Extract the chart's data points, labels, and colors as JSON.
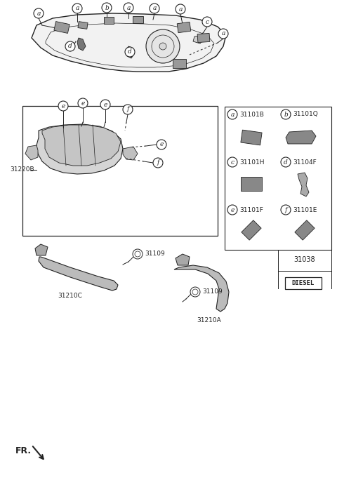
{
  "bg_color": "#ffffff",
  "line_color": "#222222",
  "gray_fill": "#aaaaaa",
  "light_gray": "#d8d8d8",
  "dark_gray": "#777777",
  "med_gray": "#bbbbbb",
  "parts_table": {
    "rows": [
      {
        "letter": "a",
        "part": "31101B",
        "letter2": "b",
        "part2": "31101Q"
      },
      {
        "letter": "c",
        "part": "31101H",
        "letter2": "d",
        "part2": "31104F"
      },
      {
        "letter": "e",
        "part": "31101F",
        "letter2": "f",
        "part2": "31101E"
      }
    ],
    "extra_part": "31038",
    "label": "DIESEL"
  },
  "bottom_parts": [
    "31210C",
    "31109",
    "31210A",
    "31109",
    "31220B"
  ]
}
